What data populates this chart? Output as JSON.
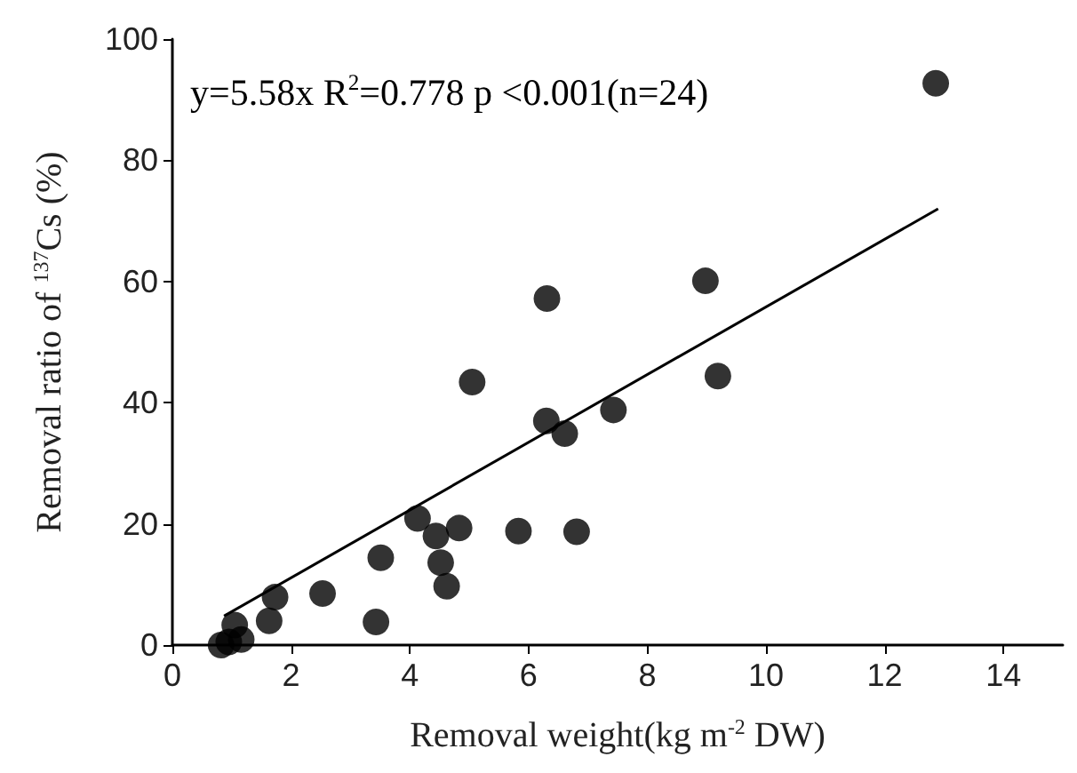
{
  "chart_data": {
    "type": "scatter",
    "xlabel": "Removal weight(kg m$^{-2}$ DW)",
    "ylabel": "Removal ratio of $^{137}$Cs (%)",
    "annotations": [
      "y=5.58x R$^{2}$=0.778 p <0.001(n=24)"
    ],
    "series": [
      {
        "color": "#000000",
        "x": [
          12.86,
          8.98,
          6.31,
          5.05,
          6.3,
          6.61,
          7.43,
          9.19,
          4.13,
          4.44,
          4.83,
          5.83,
          6.81,
          4.52,
          4.62,
          3.51,
          3.43,
          2.53,
          1.73,
          1.63,
          1.05,
          1.16,
          0.82,
          0.95
        ],
        "values": [
          92.7,
          60.1,
          57.2,
          43.4,
          37.0,
          34.9,
          38.8,
          44.4,
          20.9,
          18.0,
          19.3,
          18.8,
          18.7,
          13.6,
          9.7,
          14.4,
          3.8,
          8.5,
          7.9,
          4.0,
          3.3,
          0.9,
          0,
          0.5
        ]
      },
      {
        "type": "line",
        "marker": "none",
        "color": "#000000",
        "x": [
          0.87,
          12.9
        ],
        "values": [
          4.8,
          72.0
        ]
      }
    ],
    "xlim": [
      0,
      15
    ],
    "xticks": [
      0,
      2,
      4,
      6,
      8,
      10,
      12,
      14
    ],
    "ylim": [
      0,
      100
    ],
    "yticks": [
      0,
      20,
      40,
      60,
      80,
      100
    ],
    "grid": false,
    "marker": "circle",
    "line_style": "solid"
  }
}
